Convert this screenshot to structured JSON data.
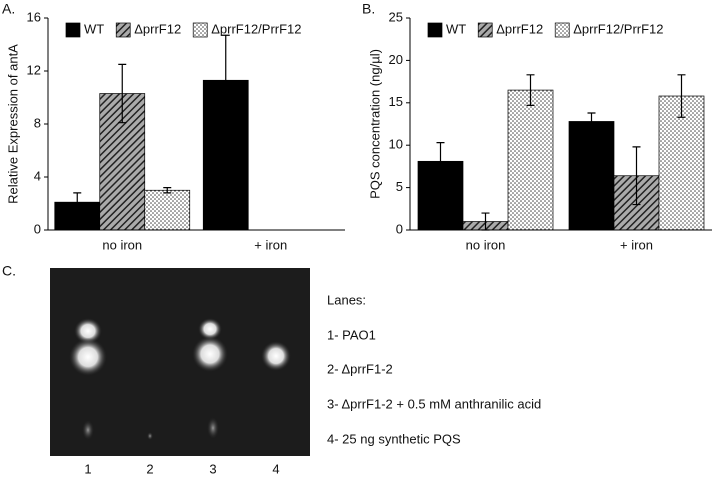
{
  "chart_data": [
    {
      "type": "bar",
      "label": "A.",
      "ylabel": "Relative Expression of antA",
      "categories": [
        "no iron",
        "+ iron"
      ],
      "series": [
        {
          "name": "WT",
          "color": "#000000",
          "pattern": "solid",
          "values": [
            2.1,
            11.3
          ],
          "errors": [
            0.7,
            3.4
          ]
        },
        {
          "name": "ΔprrF12",
          "color": "#444444",
          "pattern": "hatch",
          "values": [
            10.3,
            null
          ],
          "errors": [
            2.2,
            null
          ]
        },
        {
          "name": "ΔprrF12/PrrF12",
          "color": "#444444",
          "pattern": "dots",
          "values": [
            3.0,
            null
          ],
          "errors": [
            0.2,
            null
          ]
        }
      ],
      "ylim": [
        0,
        16
      ],
      "yticks": [
        0,
        4,
        8,
        12,
        16
      ],
      "legend": "top"
    },
    {
      "type": "bar",
      "label": "B.",
      "ylabel": "PQS concentration (ng/µl)",
      "categories": [
        "no iron",
        "+ iron"
      ],
      "series": [
        {
          "name": "WT",
          "color": "#000000",
          "pattern": "solid",
          "values": [
            8.1,
            12.8
          ],
          "errors": [
            2.2,
            1.0
          ]
        },
        {
          "name": "ΔprrF12",
          "color": "#444444",
          "pattern": "hatch",
          "values": [
            1.0,
            6.4
          ],
          "errors": [
            1.0,
            3.4
          ]
        },
        {
          "name": "ΔprrF12/PrrF12",
          "color": "#444444",
          "pattern": "dots",
          "values": [
            16.5,
            15.8
          ],
          "errors": [
            1.8,
            2.5
          ]
        }
      ],
      "ylim": [
        0,
        25
      ],
      "yticks": [
        0,
        5,
        10,
        15,
        20,
        25
      ],
      "legend": "top"
    }
  ],
  "panel_c": {
    "label": "C.",
    "lanes": [
      "1",
      "2",
      "3",
      "4"
    ],
    "legend_title": "Lanes:",
    "legend": [
      "1- PAO1",
      "2- ΔprrF1-2",
      "3- ΔprrF1-2 + 0.5 mM anthranilic acid",
      "4- 25 ng synthetic PQS"
    ]
  }
}
